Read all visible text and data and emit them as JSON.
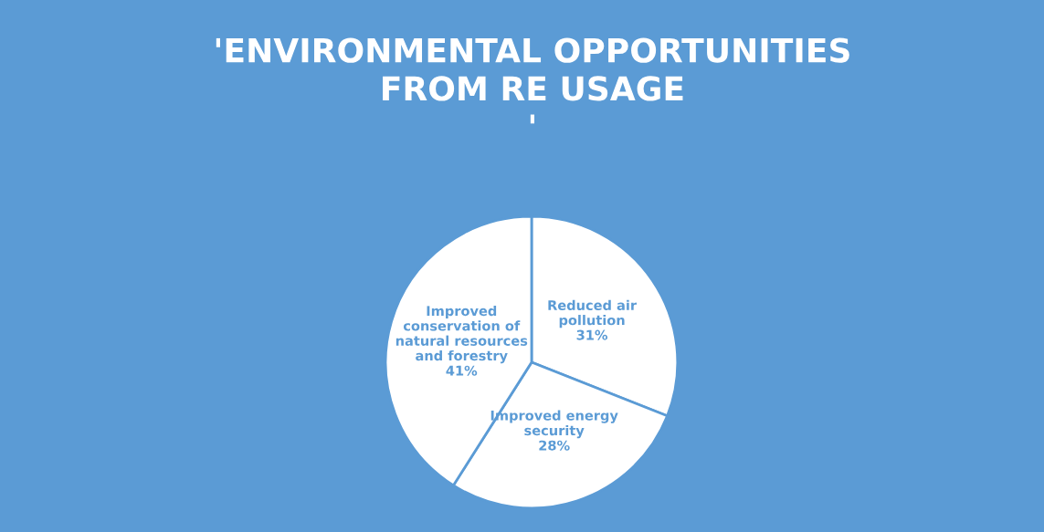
{
  "chart_data": {
    "type": "pie",
    "title": "'ENVIRONMENTAL OPPORTUNITIES\nFROM RE USAGE\n'",
    "categories": [
      "Reduced air\npollution",
      "Improved energy\nsecurity",
      "Improved\nconservation of\nnatural resources\nand forestry"
    ],
    "values": [
      31,
      28,
      41
    ],
    "colors": [
      "#ffffff",
      "#ffffff",
      "#ffffff"
    ],
    "value_labels": [
      "31%",
      "28%",
      "41%"
    ],
    "legend": false
  }
}
